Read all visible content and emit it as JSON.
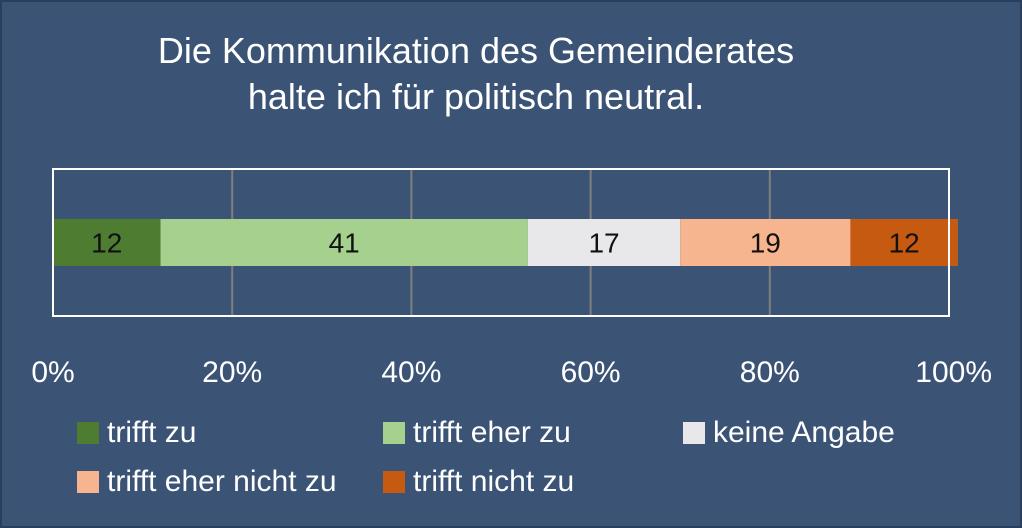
{
  "chart_data": {
    "type": "bar",
    "orientation": "horizontal",
    "stacked": true,
    "title_lines": [
      "Die Kommunikation des Gemeinderates",
      "halte ich für politisch neutral."
    ],
    "x_ticks": [
      "0%",
      "20%",
      "40%",
      "60%",
      "80%",
      "100%"
    ],
    "xlim": [
      0,
      100
    ],
    "grid": true,
    "legend_position": "bottom",
    "series": [
      {
        "name": "trifft zu",
        "value": 12,
        "label": "12",
        "color": "#4e7d32"
      },
      {
        "name": "trifft eher zu",
        "value": 41,
        "label": "41",
        "color": "#a6d08d"
      },
      {
        "name": "keine Angabe",
        "value": 17,
        "label": "17",
        "color": "#e8e8ea"
      },
      {
        "name": "trifft eher nicht zu",
        "value": 19,
        "label": "19",
        "color": "#f6b58e"
      },
      {
        "name": "trifft nicht zu",
        "value": 12,
        "label": "12",
        "color": "#c65a11"
      }
    ]
  },
  "colors": {
    "background": "#3b5375",
    "plot_area": "#3b5375",
    "plot_border": "#ffffff",
    "gridline": "#7f7f7f",
    "text": "#ffffff",
    "data_label": "#111111"
  }
}
